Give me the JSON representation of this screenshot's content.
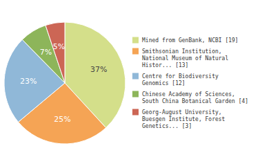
{
  "chart_data": {
    "type": "pie",
    "categories": [
      "Mined from GenBank, NCBI [19]",
      "Smithsonian Institution,\nNational Museum of Natural\nHistor... [13]",
      "Centre for Biodiversity\nGenomics [12]",
      "Chinese Academy of Sciences,\nSouth China Botanical Garden [4]",
      "Georg-August University,\nBuesgen Institute, Forest\nGenetics... [3]"
    ],
    "values": [
      37,
      25,
      23,
      7,
      5
    ],
    "value_labels": [
      "37%",
      "25%",
      "23%",
      "7%",
      "5%"
    ],
    "colors": [
      "#d4df8a",
      "#f5a455",
      "#90b8d8",
      "#8db55a",
      "#cc6655"
    ],
    "data_labels": true,
    "legend": "right"
  }
}
